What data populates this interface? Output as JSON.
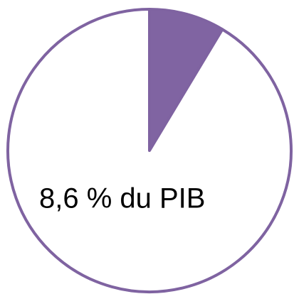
{
  "chart_data": {
    "type": "pie",
    "categories": [
      null,
      null
    ],
    "values": [
      8.6,
      91.4
    ],
    "value_labels": [
      "8,6 % du PIB",
      null
    ],
    "colors": [
      "#8064a2",
      "#ffffff"
    ],
    "edgecolor": "#7f63a1"
  }
}
